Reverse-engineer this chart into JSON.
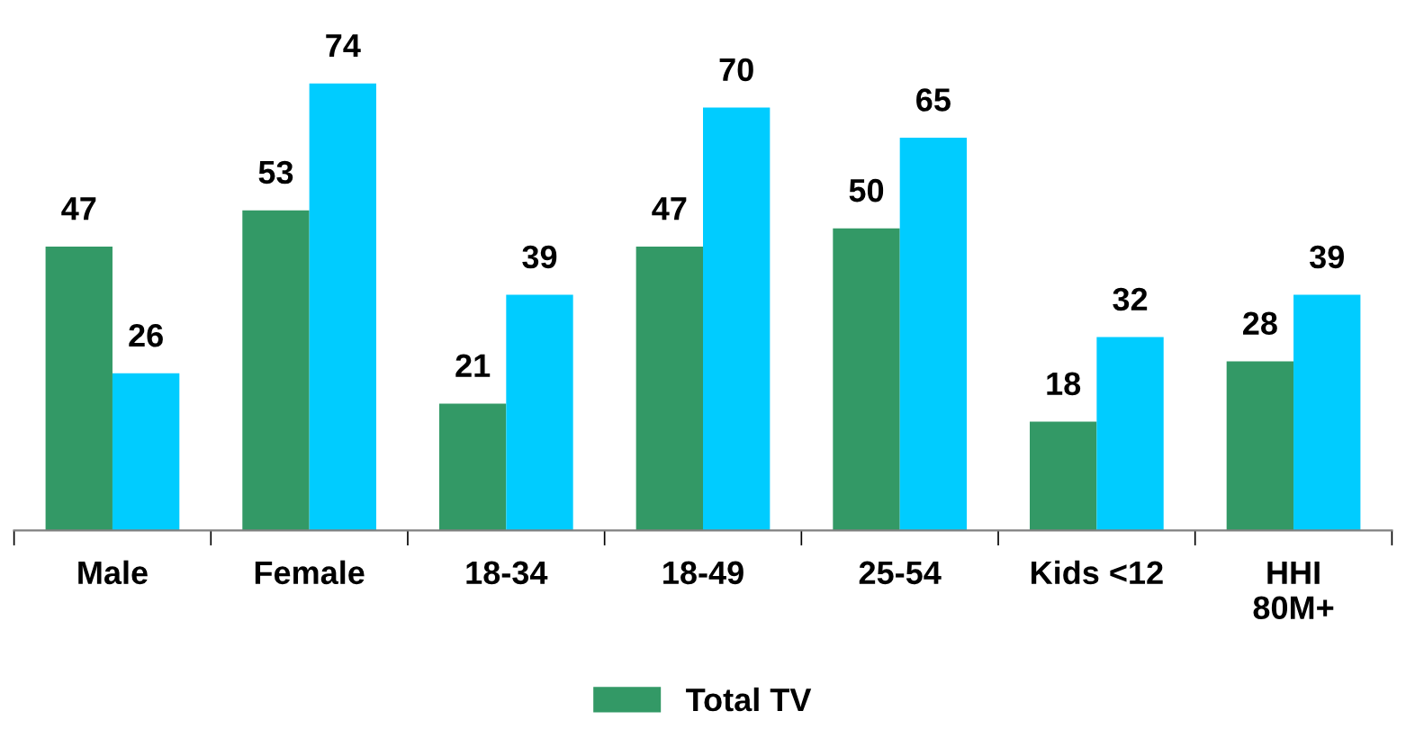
{
  "chart_data": {
    "type": "bar",
    "categories": [
      "Male",
      "Female",
      "18-34",
      "18-49",
      "25-54",
      "Kids <12",
      "HHI\n80M+"
    ],
    "series": [
      {
        "name": "Total TV",
        "color": "#339966",
        "values": [
          47,
          53,
          21,
          47,
          50,
          18,
          28
        ]
      },
      {
        "color": "#00ccff",
        "values": [
          26,
          74,
          39,
          70,
          65,
          32,
          39
        ]
      }
    ],
    "data_labels": true,
    "legend": "bottom",
    "grid": false
  }
}
